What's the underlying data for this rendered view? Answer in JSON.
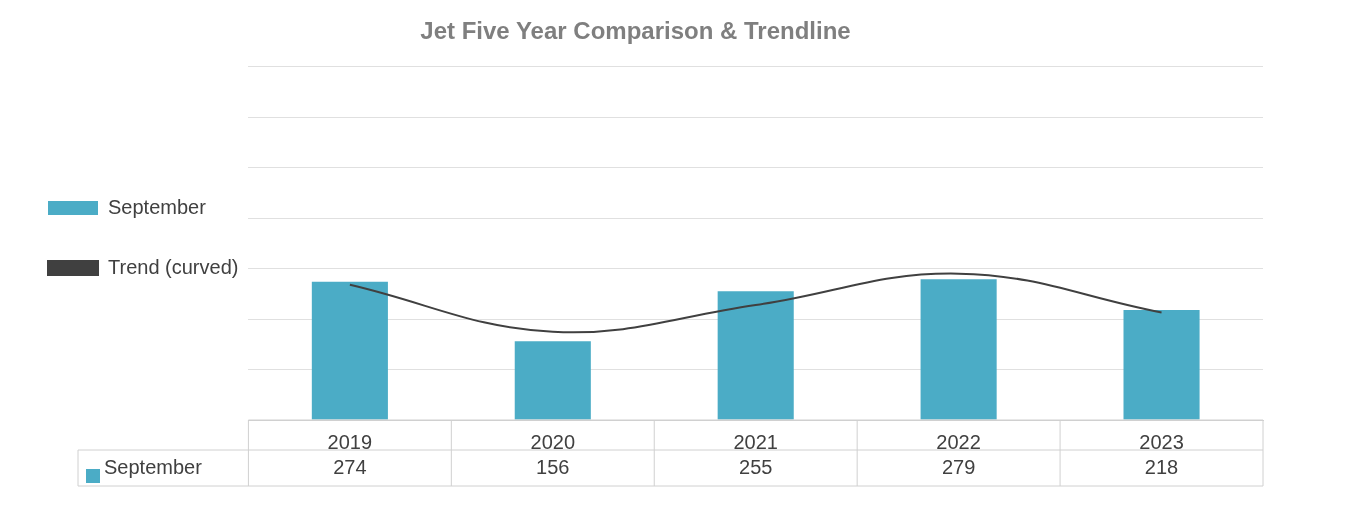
{
  "chart_data": {
    "type": "bar",
    "title": "Jet Five Year Comparison & Trendline",
    "categories": [
      "2019",
      "2020",
      "2021",
      "2022",
      "2023"
    ],
    "series": [
      {
        "name": "September",
        "color": "#4bacc6",
        "values": [
          274,
          156,
          255,
          279,
          218
        ],
        "value_labels": [
          "274",
          "156",
          "255",
          "279",
          "218"
        ]
      },
      {
        "name": "Trend (curved)",
        "type": "line",
        "color": "#404040",
        "values": [
          268,
          175,
          228,
          290,
          213
        ]
      }
    ],
    "ylim": [
      0,
      700
    ],
    "yticks": [
      {
        "value": 0,
        "label": null
      },
      {
        "value": 100,
        "label": null
      },
      {
        "value": 200,
        "label": null
      },
      {
        "value": 300,
        "label": null
      },
      {
        "value": 400,
        "label": null
      },
      {
        "value": 500,
        "label": null
      },
      {
        "value": 600,
        "label": null
      },
      {
        "value": 700,
        "label": null
      }
    ],
    "tick_labels": "x",
    "grid": "y",
    "legend": "left"
  }
}
